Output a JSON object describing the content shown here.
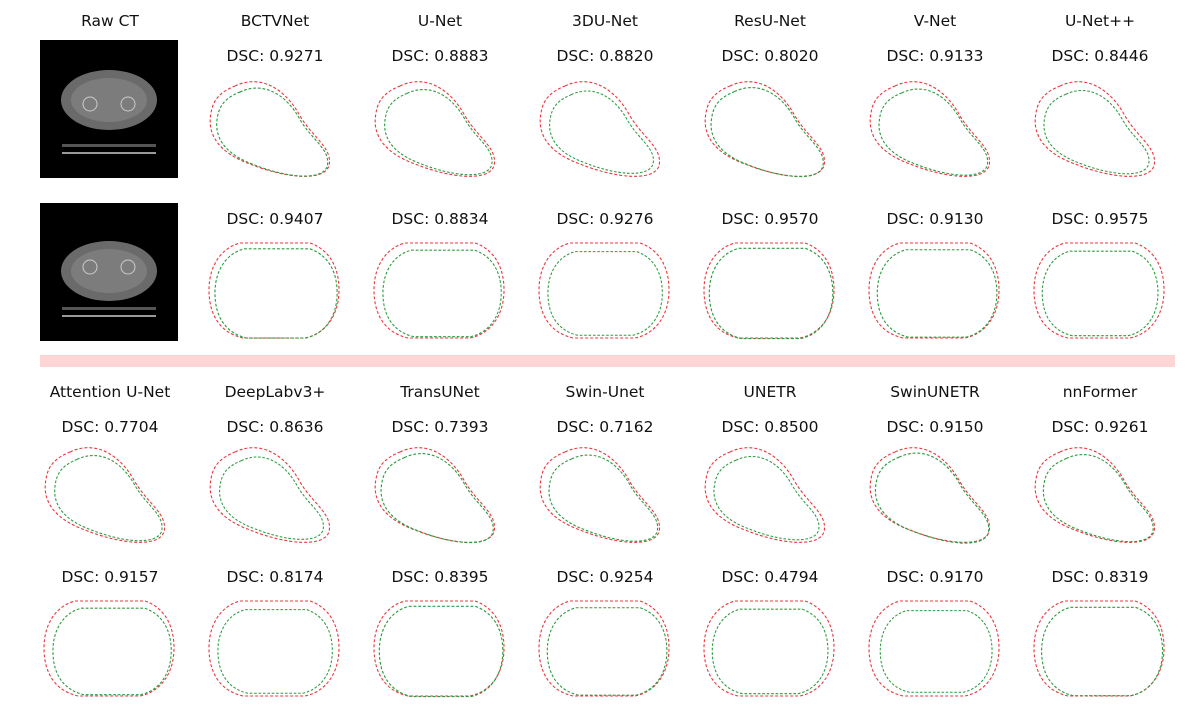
{
  "top": {
    "headers": [
      "Raw CT",
      "BCTVNet",
      "U-Net",
      "3DU-Net",
      "ResU-Net",
      "V-Net",
      "U-Net++"
    ],
    "row1_dsc": [
      "DSC: 0.9271",
      "DSC: 0.8883",
      "DSC: 0.8820",
      "DSC: 0.8020",
      "DSC: 0.9133",
      "DSC: 0.8446"
    ],
    "row2_dsc": [
      "DSC: 0.9407",
      "DSC: 0.8834",
      "DSC: 0.9276",
      "DSC: 0.9570",
      "DSC: 0.9130",
      "DSC: 0.9575"
    ]
  },
  "bottom": {
    "headers": [
      "Attention U-Net",
      "DeepLabv3+",
      "TransUNet",
      "Swin-Unet",
      "UNETR",
      "SwinUNETR",
      "nnFormer"
    ],
    "row1_dsc": [
      "DSC: 0.7704",
      "DSC: 0.8636",
      "DSC: 0.7393",
      "DSC: 0.7162",
      "DSC: 0.8500",
      "DSC: 0.9150",
      "DSC: 0.9261"
    ],
    "row2_dsc": [
      "DSC: 0.9157",
      "DSC: 0.8174",
      "DSC: 0.8395",
      "DSC: 0.9254",
      "DSC: 0.4794",
      "DSC: 0.9170",
      "DSC: 0.8319"
    ]
  },
  "colors": {
    "ground_truth": "#e8383d",
    "prediction": "#2e9a3e",
    "separator": "#fdd5d5"
  }
}
